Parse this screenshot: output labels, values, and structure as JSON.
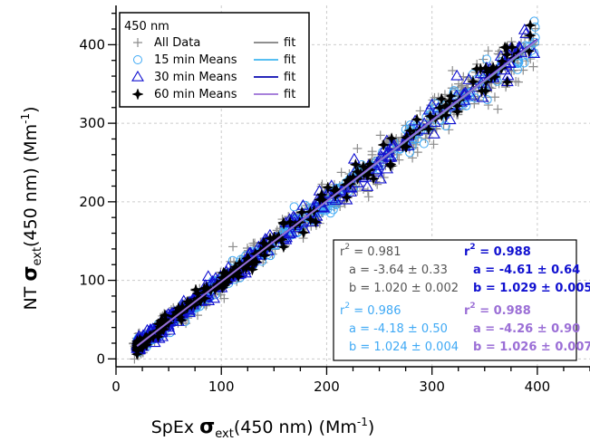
{
  "chart_data": {
    "type": "scatter",
    "title": "",
    "xlabel": {
      "prefix": "SpEx ",
      "symbol": "σ",
      "subscript": "ext",
      "suffix": "(450 nm) (Mm",
      "superscript": "-1",
      "close": ")"
    },
    "ylabel": {
      "prefix": "NT ",
      "symbol": "σ",
      "subscript": "ext",
      "suffix": "(450 nm) (Mm",
      "superscript": "-1",
      "close": ")"
    },
    "xlim": [
      0,
      450
    ],
    "ylim": [
      -10,
      450
    ],
    "xticks": [
      0,
      100,
      200,
      300,
      400
    ],
    "yticks": [
      0,
      100,
      200,
      300,
      400
    ],
    "grid": true,
    "legend": {
      "placement": "top-left",
      "title": "450 nm",
      "entries": [
        {
          "label": "All Data",
          "marker": "plus",
          "color": "#8c8c8c"
        },
        {
          "label": "15 min Means",
          "marker": "circle",
          "color": "#3fa9f5"
        },
        {
          "label": "30 min Means",
          "marker": "triangle",
          "color": "#1010d0"
        },
        {
          "label": "60 min Means",
          "marker": "star",
          "color": "#000000"
        }
      ],
      "fit_entries": [
        {
          "label": "fit",
          "color": "#7f7f7f"
        },
        {
          "label": "fit",
          "color": "#3fb6f0"
        },
        {
          "label": "fit",
          "color": "#0a0ab0"
        },
        {
          "label": "fit",
          "color": "#9b6fd6"
        }
      ]
    },
    "series": [
      {
        "name": "All Data",
        "marker": "plus",
        "color": "#8c8c8c",
        "fit": {
          "a": -3.64,
          "b": 1.02
        }
      },
      {
        "name": "15 min Means",
        "marker": "circle",
        "color": "#3fa9f5",
        "fit": {
          "a": -4.18,
          "b": 1.024
        }
      },
      {
        "name": "30 min Means",
        "marker": "triangle",
        "color": "#1010d0",
        "fit": {
          "a": -4.61,
          "b": 1.029
        }
      },
      {
        "name": "60 min Means",
        "marker": "star",
        "color": "#000000",
        "fit": {
          "a": -4.26,
          "b": 1.026
        }
      }
    ],
    "scatter_x_range": [
      20,
      400
    ],
    "fit_x_range": [
      20,
      400
    ],
    "stats": [
      {
        "color": "#555555",
        "r2": "0.981",
        "a": "-3.64 ± 0.33",
        "b": "1.020 ± 0.002"
      },
      {
        "color": "#1010d0",
        "r2": "0.988",
        "a": "-4.61 ± 0.64",
        "b": "1.029 ± 0.005"
      },
      {
        "color": "#3fa9f5",
        "r2": "0.986",
        "a": "-4.18 ± 0.50",
        "b": "1.024 ± 0.004"
      },
      {
        "color": "#9b6fd6",
        "r2": "0.988",
        "a": "-4.26 ± 0.90",
        "b": "1.026 ± 0.007"
      }
    ],
    "stat_labels": {
      "r": "r",
      "r_sup": "2",
      "a": "a",
      "b": "b",
      "eq": "="
    }
  }
}
